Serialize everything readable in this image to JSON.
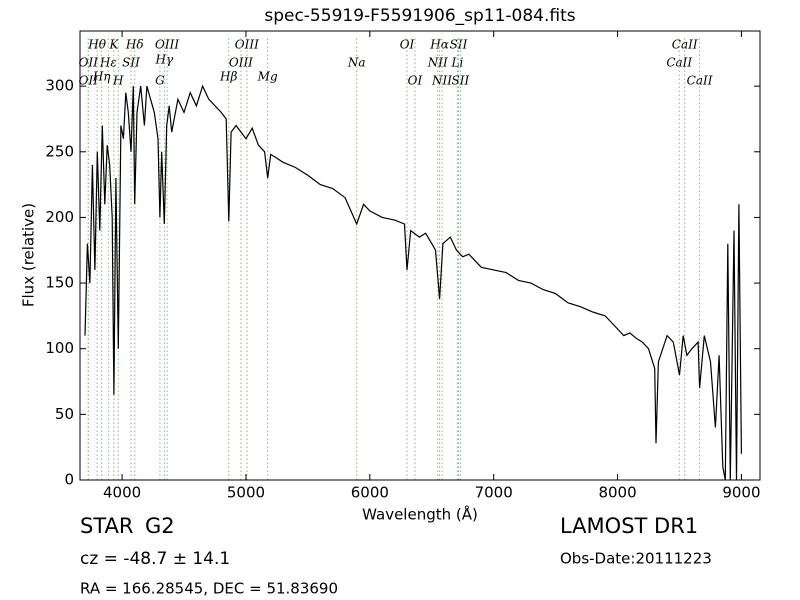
{
  "chart_data": {
    "type": "line",
    "title": "spec-55919-F5591906_sp11-084.fits",
    "x_label": "Wavelength (Å)",
    "y_label": "Flux (relative)",
    "xlim": [
      3660,
      9150
    ],
    "ylim": [
      0,
      342
    ],
    "xticks": [
      4000,
      5000,
      6000,
      7000,
      8000,
      9000
    ],
    "yticks": [
      0,
      50,
      100,
      150,
      200,
      250,
      300
    ],
    "grid": false,
    "series": [
      {
        "color": "#000000",
        "x": [
          3700,
          3720,
          3740,
          3760,
          3780,
          3800,
          3820,
          3840,
          3860,
          3880,
          3900,
          3920,
          3934,
          3950,
          3969,
          3990,
          4010,
          4030,
          4050,
          4072,
          4090,
          4102,
          4120,
          4150,
          4180,
          4200,
          4230,
          4260,
          4290,
          4305,
          4320,
          4341,
          4360,
          4380,
          4400,
          4450,
          4500,
          4550,
          4600,
          4650,
          4700,
          4750,
          4800,
          4840,
          4861,
          4880,
          4920,
          4960,
          5000,
          5050,
          5100,
          5150,
          5175,
          5200,
          5250,
          5300,
          5400,
          5500,
          5600,
          5700,
          5800,
          5894,
          5950,
          6000,
          6100,
          6200,
          6280,
          6300,
          6330,
          6400,
          6450,
          6500,
          6530,
          6563,
          6590,
          6650,
          6700,
          6750,
          6800,
          6900,
          7000,
          7100,
          7200,
          7300,
          7400,
          7500,
          7600,
          7700,
          7800,
          7900,
          8000,
          8050,
          8100,
          8150,
          8200,
          8250,
          8300,
          8310,
          8330,
          8400,
          8450,
          8500,
          8530,
          8560,
          8600,
          8650,
          8662,
          8700,
          8750,
          8790,
          8820,
          8850,
          8870,
          8890,
          8910,
          8940,
          8960,
          8980,
          9000
        ],
        "values": [
          110,
          180,
          150,
          240,
          160,
          250,
          190,
          270,
          210,
          255,
          240,
          200,
          65,
          230,
          100,
          270,
          260,
          295,
          280,
          250,
          300,
          210,
          280,
          300,
          270,
          300,
          290,
          280,
          260,
          200,
          250,
          195,
          270,
          285,
          265,
          290,
          280,
          295,
          285,
          300,
          290,
          285,
          280,
          275,
          197,
          265,
          270,
          265,
          260,
          268,
          255,
          250,
          230,
          248,
          245,
          242,
          238,
          232,
          225,
          222,
          215,
          195,
          210,
          205,
          200,
          198,
          195,
          160,
          190,
          185,
          188,
          180,
          175,
          138,
          180,
          185,
          175,
          170,
          172,
          162,
          160,
          158,
          152,
          150,
          145,
          142,
          135,
          132,
          128,
          125,
          115,
          110,
          112,
          108,
          105,
          100,
          85,
          28,
          90,
          110,
          105,
          80,
          110,
          95,
          100,
          105,
          70,
          110,
          90,
          40,
          95,
          10,
          0,
          180,
          0,
          190,
          0,
          210,
          20
        ]
      }
    ],
    "annotations": [
      {
        "text": "Hθ",
        "x": 3798
      },
      {
        "text": "K",
        "x": 3934
      },
      {
        "text": "Hδ",
        "x": 4102
      },
      {
        "text": "OIII",
        "x": 4363
      },
      {
        "text": "OIII",
        "x": 5007
      },
      {
        "text": "OI",
        "x": 6300
      },
      {
        "text": "Hα",
        "x": 6563
      },
      {
        "text": "SII",
        "x": 6716
      },
      {
        "text": "CaII",
        "x": 8542
      },
      {
        "text": "OII",
        "x": 3727
      },
      {
        "text": "Hε",
        "x": 3889
      },
      {
        "text": "SII",
        "x": 4072
      },
      {
        "text": "Hγ",
        "x": 4341
      },
      {
        "text": "OIII",
        "x": 4959
      },
      {
        "text": "Na",
        "x": 5894
      },
      {
        "text": "NII",
        "x": 6548
      },
      {
        "text": "Li",
        "x": 6707
      },
      {
        "text": "CaII",
        "x": 8498
      },
      {
        "text": "OII",
        "x": 3727
      },
      {
        "text": "Hη",
        "x": 3835
      },
      {
        "text": "H",
        "x": 3969
      },
      {
        "text": "G",
        "x": 4305
      },
      {
        "text": "Hβ",
        "x": 4861
      },
      {
        "text": "Mg",
        "x": 5175
      },
      {
        "text": "OI",
        "x": 6364
      },
      {
        "text": "NII",
        "x": 6583
      },
      {
        "text": "SII",
        "x": 6731
      },
      {
        "text": "CaII",
        "x": 8662
      }
    ]
  },
  "footer": {
    "object_class": "STAR",
    "subclass": "G2",
    "survey": "LAMOST DR1",
    "redshift": "cz = -48.7 ± 14.1",
    "obs_date": "Obs-Date:20111223",
    "coordinates": "RA = 166.28545, DEC = 51.83690"
  }
}
